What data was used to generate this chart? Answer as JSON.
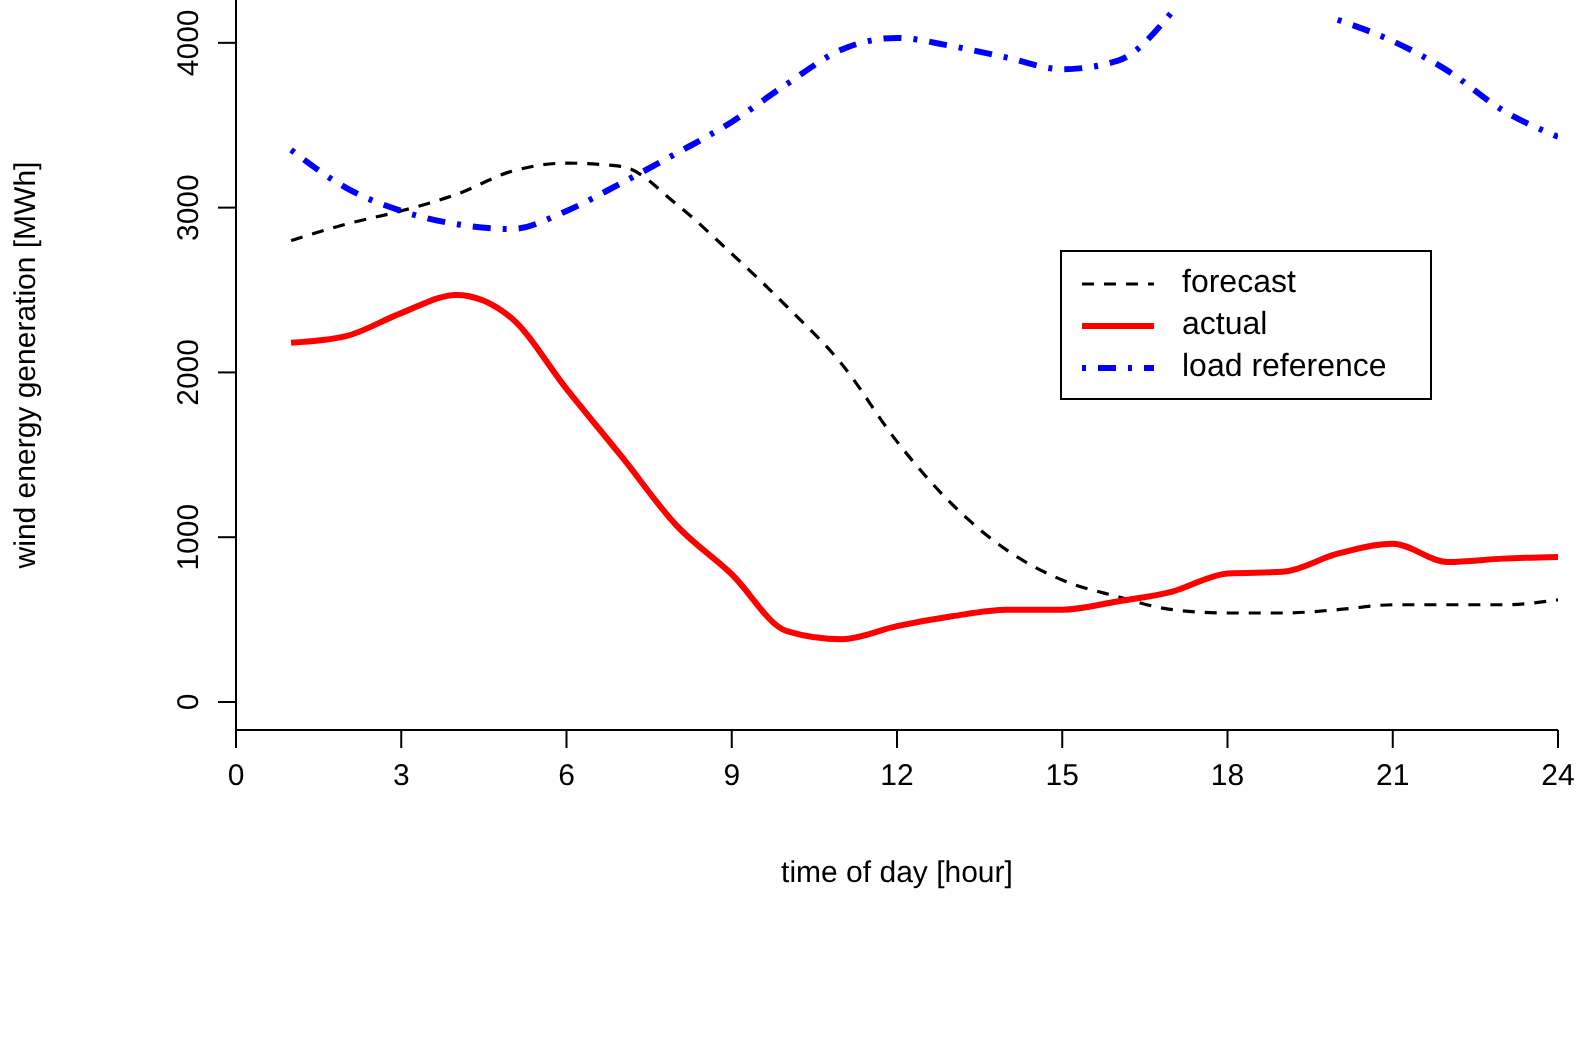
{
  "chart_data": {
    "type": "line",
    "xlabel": "time of day [hour]",
    "ylabel": "wind energy generation [MWh]",
    "x": [
      1,
      2,
      3,
      4,
      5,
      6,
      7,
      8,
      9,
      10,
      11,
      12,
      13,
      14,
      15,
      16,
      17,
      18,
      19,
      20,
      21,
      22,
      23,
      24
    ],
    "xlim": [
      0,
      24
    ],
    "xticks": [
      0,
      3,
      6,
      9,
      12,
      15,
      18,
      21,
      24
    ],
    "ylim": [
      -170,
      4260
    ],
    "yticks": [
      0,
      1000,
      2000,
      3000,
      4000
    ],
    "grid": false,
    "legend": "top right",
    "marker": "none",
    "series": [
      {
        "name": "forecast",
        "color": "#000000",
        "line_style": "dashed",
        "values": [
          2800,
          2900,
          2980,
          3080,
          3220,
          3270,
          3250,
          3020,
          2720,
          2400,
          2050,
          1580,
          1200,
          920,
          740,
          640,
          560,
          540,
          540,
          560,
          590,
          590,
          590,
          620
        ]
      },
      {
        "name": "actual",
        "color": "#ff0000",
        "line_style": "solid",
        "values": [
          2180,
          2220,
          2360,
          2470,
          2330,
          1900,
          1490,
          1070,
          775,
          430,
          380,
          460,
          520,
          560,
          560,
          610,
          670,
          780,
          790,
          900,
          960,
          850,
          870,
          880
        ]
      },
      {
        "name": "load reference",
        "color": "#0000ff",
        "line_style": "dashdot",
        "values": [
          3350,
          3120,
          2980,
          2900,
          2870,
          2980,
          3150,
          3330,
          3520,
          3750,
          3960,
          4030,
          3980,
          3910,
          3840,
          3890,
          4190,
          null,
          null,
          4140,
          4010,
          3830,
          3590,
          3430
        ]
      }
    ]
  }
}
